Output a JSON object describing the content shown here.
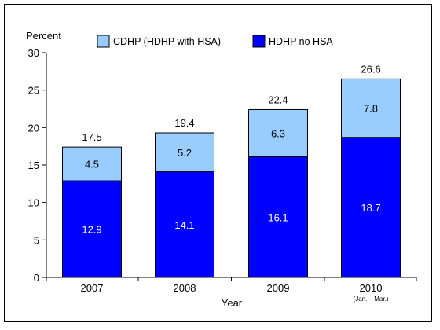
{
  "chart_data": {
    "type": "bar",
    "stacked": true,
    "categories": [
      "2007",
      "2008",
      "2009",
      "2010"
    ],
    "category_sublabels": [
      "",
      "",
      "",
      "(Jan. – Mar.)"
    ],
    "series": [
      {
        "name": "HDHP no HSA",
        "values": [
          12.9,
          14.1,
          16.1,
          18.7
        ],
        "color": "#0000ff"
      },
      {
        "name": "CDHP (HDHP with HSA)",
        "values": [
          4.5,
          5.2,
          6.3,
          7.8
        ],
        "color": "#99ccff"
      }
    ],
    "totals": [
      17.5,
      19.4,
      22.4,
      26.6
    ],
    "ylabel": "Percent",
    "xlabel": "Year",
    "ylim": [
      0,
      30
    ],
    "yticks": [
      0,
      5,
      10,
      15,
      20,
      25,
      30
    ],
    "grid": false,
    "legend_position": "top"
  }
}
